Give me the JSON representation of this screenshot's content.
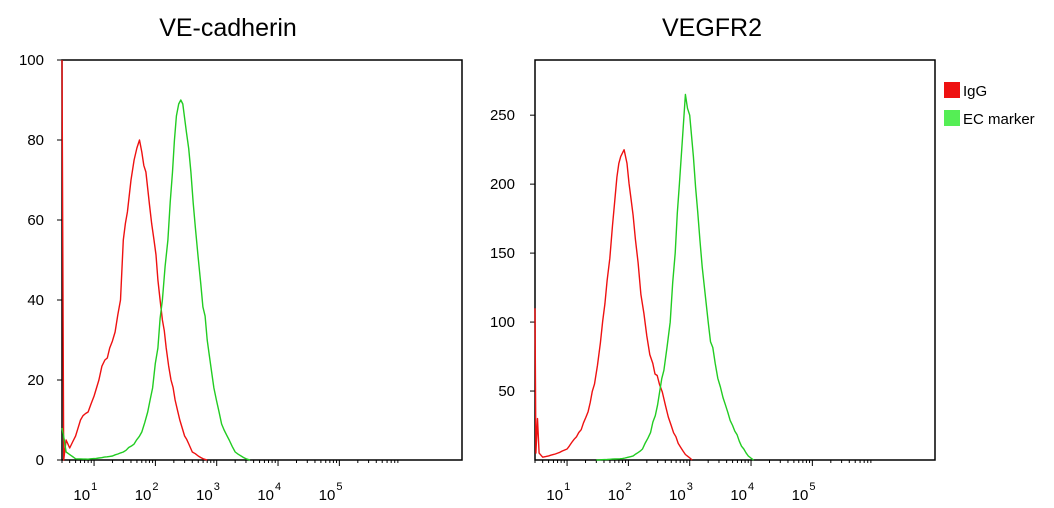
{
  "chart_data": [
    {
      "type": "line",
      "title": "VE-cadherin",
      "xlabel": "",
      "ylabel": "",
      "x_scale": "log",
      "xlim": [
        3,
        10000000
      ],
      "ylim": [
        0,
        100
      ],
      "y_ticks": [
        0,
        20,
        40,
        60,
        80,
        100
      ],
      "x_ticks": [
        {
          "value": 10,
          "base": "10",
          "exp": "1"
        },
        {
          "value": 100,
          "base": "10",
          "exp": "2"
        },
        {
          "value": 1000,
          "base": "10",
          "exp": "3"
        },
        {
          "value": 10000,
          "base": "10",
          "exp": "4"
        },
        {
          "value": 100000,
          "base": "10",
          "exp": "5"
        }
      ],
      "grid": false,
      "series": [
        {
          "name": "IgG",
          "color": "#ee1111",
          "x": [
            3,
            3.2,
            3.5,
            4,
            5,
            6,
            8,
            10,
            12,
            15,
            18,
            22,
            27,
            30,
            35,
            40,
            45,
            50,
            55,
            60,
            70,
            80,
            95,
            110,
            130,
            150,
            180,
            210,
            250,
            300,
            350,
            400,
            500,
            600,
            700
          ],
          "y": [
            100,
            0,
            5,
            3,
            6,
            10,
            12,
            16,
            20,
            25,
            28,
            32,
            40,
            55,
            62,
            70,
            75,
            78,
            80,
            77,
            72,
            64,
            55,
            45,
            35,
            28,
            20,
            15,
            10,
            6,
            4,
            2,
            1,
            0.3,
            0
          ]
        },
        {
          "name": "EC marker",
          "color": "#22cc22",
          "x": [
            3,
            3.5,
            5,
            8,
            12,
            20,
            30,
            45,
            60,
            75,
            90,
            110,
            130,
            160,
            190,
            220,
            240,
            260,
            280,
            320,
            380,
            450,
            550,
            700,
            900,
            1200,
            1600,
            2000,
            2500,
            3000,
            3500
          ],
          "y": [
            8,
            2,
            0.3,
            0.2,
            0.5,
            1,
            2,
            4,
            7,
            12,
            18,
            28,
            40,
            55,
            72,
            86,
            89,
            90,
            89,
            82,
            72,
            58,
            44,
            30,
            18,
            9,
            5,
            2,
            1,
            0.3,
            0
          ]
        }
      ]
    },
    {
      "type": "line",
      "title": "VEGFR2",
      "xlabel": "",
      "ylabel": "",
      "x_scale": "log",
      "xlim": [
        3,
        10000000
      ],
      "ylim": [
        0,
        290
      ],
      "y_ticks": [
        50,
        100,
        150,
        200,
        250
      ],
      "x_ticks": [
        {
          "value": 10,
          "base": "10",
          "exp": "1"
        },
        {
          "value": 100,
          "base": "10",
          "exp": "2"
        },
        {
          "value": 1000,
          "base": "10",
          "exp": "3"
        },
        {
          "value": 10000,
          "base": "10",
          "exp": "4"
        },
        {
          "value": 100000,
          "base": "10",
          "exp": "5"
        }
      ],
      "grid": false,
      "legend": {
        "placement": "right",
        "entries": [
          {
            "label": "IgG",
            "color": "#ee1111"
          },
          {
            "label": "EC marker",
            "color": "#55ee55"
          }
        ]
      },
      "series": [
        {
          "name": "IgG",
          "color": "#ee1111",
          "x": [
            3,
            3.1,
            3.3,
            3.5,
            4,
            5,
            7,
            10,
            13,
            17,
            22,
            28,
            35,
            45,
            55,
            65,
            75,
            85,
            95,
            110,
            130,
            160,
            200,
            250,
            320,
            400,
            500,
            650,
            850,
            1100
          ],
          "y": [
            110,
            5,
            30,
            5,
            2,
            3,
            5,
            8,
            15,
            22,
            35,
            55,
            85,
            130,
            170,
            205,
            220,
            225,
            215,
            190,
            160,
            120,
            90,
            70,
            55,
            40,
            25,
            12,
            4,
            0
          ]
        },
        {
          "name": "EC marker",
          "color": "#22cc22",
          "x": [
            30,
            50,
            80,
            120,
            170,
            230,
            300,
            380,
            480,
            580,
            680,
            780,
            850,
            920,
            1000,
            1150,
            1350,
            1600,
            2000,
            2600,
            3500,
            5000,
            7000,
            9000,
            11000
          ],
          "y": [
            0,
            0.5,
            1,
            3,
            8,
            20,
            40,
            65,
            100,
            150,
            200,
            240,
            265,
            255,
            250,
            220,
            180,
            140,
            100,
            70,
            45,
            25,
            10,
            3,
            0
          ]
        }
      ]
    }
  ]
}
